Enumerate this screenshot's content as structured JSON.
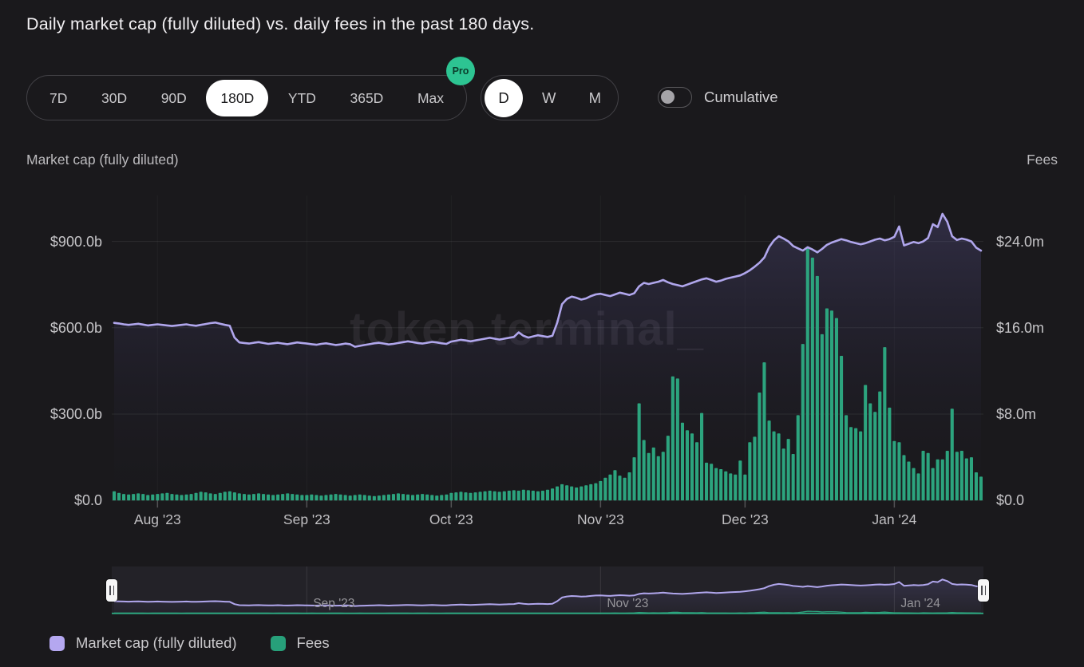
{
  "title": "Daily market cap (fully diluted) vs. daily fees in the past 180 days.",
  "controls": {
    "range_tabs": {
      "options": [
        "7D",
        "30D",
        "90D",
        "180D",
        "YTD",
        "365D",
        "Max"
      ],
      "selected": "180D",
      "pro_badge": "Pro"
    },
    "granularity_tabs": {
      "options": [
        "D",
        "W",
        "M"
      ],
      "selected": "D"
    },
    "cumulative_toggle": {
      "label": "Cumulative",
      "state": "off"
    }
  },
  "axes": {
    "left_title": "Market cap (fully diluted)",
    "right_title": "Fees",
    "left_ticks": [
      "$900.0b",
      "$600.0b",
      "$300.0b",
      "$0.0"
    ],
    "right_ticks": [
      "$24.0m",
      "$16.0m",
      "$8.0m",
      "$0.0"
    ],
    "x_ticks": [
      "Aug '23",
      "Sep '23",
      "Oct '23",
      "Nov '23",
      "Dec '23",
      "Jan '24"
    ]
  },
  "watermark": "token terminal_",
  "navigator": {
    "labels": [
      "Sep '23",
      "Nov '23",
      "Jan '24"
    ],
    "label_tick_slots": [
      1,
      3,
      5
    ]
  },
  "legend": [
    {
      "label": "Market cap (fully diluted)",
      "color": "#b4a7f0"
    },
    {
      "label": "Fees",
      "color": "#27a07a"
    }
  ],
  "colors": {
    "background": "#1a191c",
    "line": "#b0a6ec",
    "bar": "#2ca47e",
    "selected_pill_bg": "#ffffff",
    "pro_badge": "#2dc492",
    "gridline": "rgba(255,255,255,0.08)"
  },
  "chart_data": {
    "type": "mixed",
    "title": "Daily market cap (fully diluted) vs. daily fees in the past 180 days.",
    "x_range_days": 181,
    "month_tick_indices": [
      9,
      40,
      70,
      101,
      131,
      162
    ],
    "month_tick_labels": [
      "Aug '23",
      "Sep '23",
      "Oct '23",
      "Nov '23",
      "Dec '23",
      "Jan '24"
    ],
    "left_axis": {
      "title": "Market cap (fully diluted)",
      "tick_values_billions": [
        900,
        600,
        300,
        0
      ]
    },
    "right_axis": {
      "title": "Fees",
      "tick_values_millions": [
        24,
        16,
        8,
        0
      ]
    },
    "grid": true,
    "legend_position": "bottom-left",
    "series": [
      {
        "name": "Market cap (fully diluted)",
        "type": "line",
        "unit": "billions_usd",
        "color": "#b0a6ec",
        "values": [
          617,
          615,
          612,
          610,
          612,
          614,
          611,
          608,
          610,
          612,
          610,
          608,
          606,
          608,
          610,
          612,
          609,
          607,
          610,
          613,
          616,
          618,
          614,
          610,
          607,
          566,
          549,
          547,
          545,
          548,
          550,
          547,
          544,
          546,
          548,
          545,
          543,
          546,
          549,
          547,
          545,
          543,
          541,
          544,
          546,
          543,
          540,
          542,
          545,
          543,
          534,
          537,
          540,
          543,
          546,
          548,
          545,
          542,
          544,
          547,
          550,
          553,
          550,
          547,
          545,
          548,
          551,
          549,
          546,
          544,
          552,
          555,
          558,
          556,
          553,
          556,
          559,
          562,
          565,
          562,
          559,
          562,
          565,
          568,
          584,
          572,
          566,
          570,
          574,
          571,
          568,
          572,
          618,
          682,
          700,
          708,
          704,
          698,
          702,
          710,
          716,
          718,
          714,
          710,
          716,
          722,
          718,
          714,
          720,
          744,
          756,
          752,
          756,
          760,
          766,
          758,
          752,
          748,
          744,
          750,
          756,
          762,
          768,
          772,
          766,
          760,
          764,
          770,
          774,
          778,
          782,
          790,
          800,
          812,
          826,
          844,
          880,
          904,
          918,
          910,
          900,
          884,
          876,
          868,
          880,
          872,
          862,
          874,
          888,
          896,
          902,
          908,
          904,
          898,
          894,
          890,
          894,
          900,
          906,
          910,
          904,
          908,
          916,
          952,
          886,
          892,
          898,
          894,
          900,
          912,
          960,
          950,
          996,
          968,
          918,
          905,
          910,
          906,
          900,
          878,
          868
        ]
      },
      {
        "name": "Fees",
        "type": "bar",
        "unit": "millions_usd",
        "color": "#2ca47e",
        "values": [
          0.85,
          0.7,
          0.6,
          0.55,
          0.6,
          0.65,
          0.6,
          0.5,
          0.55,
          0.6,
          0.65,
          0.7,
          0.6,
          0.55,
          0.5,
          0.55,
          0.6,
          0.7,
          0.8,
          0.75,
          0.65,
          0.6,
          0.7,
          0.8,
          0.85,
          0.75,
          0.65,
          0.6,
          0.55,
          0.6,
          0.65,
          0.6,
          0.55,
          0.5,
          0.55,
          0.6,
          0.65,
          0.6,
          0.55,
          0.5,
          0.5,
          0.55,
          0.5,
          0.45,
          0.5,
          0.55,
          0.6,
          0.55,
          0.5,
          0.45,
          0.5,
          0.55,
          0.5,
          0.45,
          0.4,
          0.45,
          0.5,
          0.55,
          0.6,
          0.65,
          0.6,
          0.55,
          0.5,
          0.55,
          0.6,
          0.55,
          0.5,
          0.45,
          0.5,
          0.55,
          0.7,
          0.75,
          0.8,
          0.75,
          0.7,
          0.75,
          0.8,
          0.85,
          0.9,
          0.85,
          0.8,
          0.85,
          0.9,
          0.95,
          0.9,
          1.0,
          0.95,
          0.9,
          0.85,
          0.9,
          1.0,
          1.1,
          1.3,
          1.5,
          1.4,
          1.3,
          1.2,
          1.3,
          1.4,
          1.5,
          1.6,
          1.8,
          2.1,
          2.4,
          2.8,
          2.3,
          2.1,
          2.6,
          4.0,
          9.0,
          5.6,
          4.4,
          4.9,
          4.1,
          4.5,
          6.0,
          11.5,
          11.3,
          7.2,
          6.5,
          6.2,
          5.4,
          8.1,
          3.5,
          3.4,
          3.0,
          2.9,
          2.7,
          2.5,
          2.4,
          3.7,
          2.4,
          5.4,
          5.9,
          10.0,
          12.8,
          7.4,
          6.4,
          6.2,
          4.8,
          5.7,
          4.3,
          7.9,
          14.5,
          23.5,
          22.5,
          20.8,
          15.4,
          17.8,
          17.6,
          16.9,
          13.4,
          7.9,
          6.8,
          6.7,
          6.4,
          10.7,
          9.0,
          8.2,
          10.1,
          14.2,
          8.6,
          5.5,
          5.4,
          4.2,
          3.6,
          3.0,
          2.5,
          4.6,
          4.4,
          3.0,
          3.8,
          3.8,
          4.6,
          8.5,
          4.5,
          4.6,
          3.9,
          4.0,
          2.6,
          2.2
        ]
      }
    ]
  }
}
